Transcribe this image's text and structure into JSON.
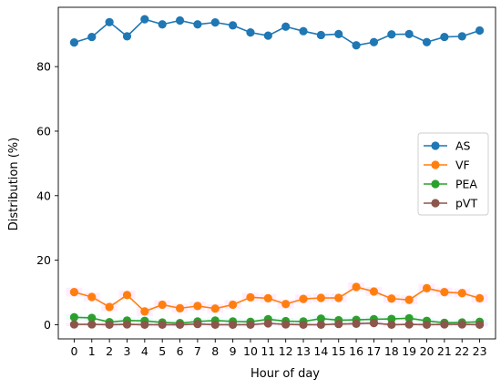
{
  "chart_data": {
    "type": "line",
    "xlabel": "Hour of day",
    "ylabel": "Distribution (%)",
    "x": [
      0,
      1,
      2,
      3,
      4,
      5,
      6,
      7,
      8,
      9,
      10,
      11,
      12,
      13,
      14,
      15,
      16,
      17,
      18,
      19,
      20,
      21,
      22,
      23
    ],
    "xlim": [
      -0.9,
      23.9
    ],
    "ylim": [
      -4.4,
      98.4
    ],
    "yticks": [
      0,
      20,
      40,
      60,
      80
    ],
    "grid": false,
    "legend_position": "center-right",
    "series": [
      {
        "name": "AS",
        "color": "#1f77b4",
        "values": [
          87.5,
          89.2,
          93.8,
          89.4,
          94.7,
          93.1,
          94.3,
          93.1,
          93.7,
          92.8,
          90.6,
          89.6,
          92.4,
          91.0,
          89.8,
          90.1,
          86.6,
          87.6,
          90.0,
          90.1,
          87.6,
          89.2,
          89.4,
          91.2
        ]
      },
      {
        "name": "VF",
        "color": "#ff7f0e",
        "values": [
          10.1,
          8.6,
          5.5,
          9.2,
          4.1,
          6.2,
          5.1,
          5.8,
          5.0,
          6.2,
          8.5,
          8.2,
          6.4,
          8.0,
          8.3,
          8.3,
          11.7,
          10.3,
          8.1,
          7.7,
          11.3,
          10.1,
          9.8,
          8.2
        ]
      },
      {
        "name": "PEA",
        "color": "#2ca02c",
        "values": [
          2.3,
          2.1,
          0.8,
          1.3,
          1.2,
          0.7,
          0.5,
          1.0,
          1.3,
          1.0,
          0.9,
          1.7,
          1.1,
          1.0,
          1.9,
          1.4,
          1.5,
          1.7,
          1.8,
          2.0,
          1.2,
          0.6,
          0.7,
          0.9
        ]
      },
      {
        "name": "pVT",
        "color": "#8c564b",
        "values": [
          0.1,
          0.1,
          0.0,
          0.1,
          0.0,
          0.0,
          0.0,
          0.2,
          0.0,
          0.0,
          0.0,
          0.4,
          0.1,
          0.0,
          0.0,
          0.2,
          0.3,
          0.5,
          0.0,
          0.1,
          0.0,
          0.1,
          0.1,
          0.0
        ]
      }
    ]
  }
}
